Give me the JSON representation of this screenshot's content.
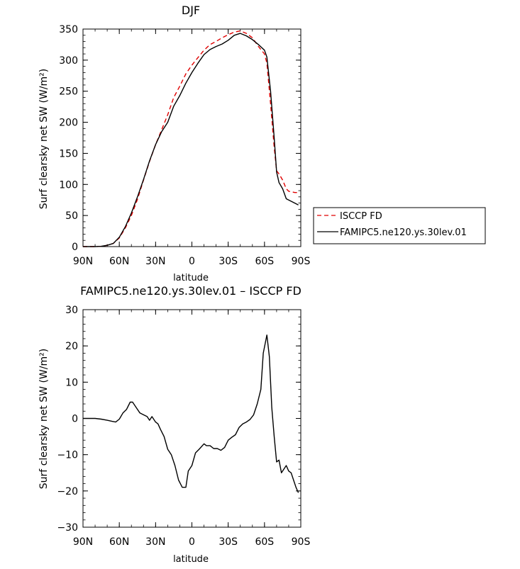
{
  "chart_data": [
    {
      "type": "line",
      "title": "DJF",
      "xlabel": "latitude",
      "ylabel": "Surf clearsky net SW (W/m²)",
      "xlim": [
        90,
        -90
      ],
      "ylim": [
        0,
        350
      ],
      "x_ticks": [
        90,
        60,
        30,
        0,
        -30,
        -60,
        -90
      ],
      "x_tick_labels": [
        "90N",
        "60N",
        "30N",
        "0",
        "30S",
        "60S",
        "90S"
      ],
      "y_ticks": [
        0,
        50,
        100,
        150,
        200,
        250,
        300,
        350
      ],
      "y_tick_labels": [
        "0",
        "50",
        "100",
        "150",
        "200",
        "250",
        "300",
        "350"
      ],
      "legend_position": "right",
      "series": [
        {
          "name": "ISCCP FD",
          "color": "#e00000",
          "dash": "dashed",
          "x": [
            90,
            85,
            80,
            75,
            70,
            65,
            60,
            55,
            50,
            45,
            40,
            35,
            30,
            25,
            20,
            15,
            10,
            5,
            0,
            -5,
            -10,
            -15,
            -20,
            -25,
            -30,
            -35,
            -40,
            -45,
            -50,
            -55,
            -60,
            -62,
            -65,
            -68,
            -70,
            -72,
            -75,
            -78,
            -80,
            -85,
            -88
          ],
          "y": [
            0,
            0,
            0,
            0.5,
            2,
            5,
            14,
            30,
            50,
            76,
            107,
            137,
            164,
            188,
            212,
            240,
            258,
            278,
            292,
            304,
            316,
            325,
            330,
            336,
            341,
            345,
            347,
            343,
            336,
            322,
            310,
            295,
            230,
            160,
            122,
            117,
            107,
            93,
            89,
            87,
            87
          ]
        },
        {
          "name": "FAMIPC5.ne120.ys.30lev.01",
          "color": "#000000",
          "dash": "solid",
          "x": [
            90,
            85,
            80,
            75,
            70,
            65,
            60,
            55,
            50,
            45,
            40,
            35,
            30,
            25,
            20,
            15,
            10,
            5,
            0,
            -5,
            -10,
            -15,
            -20,
            -25,
            -30,
            -35,
            -40,
            -45,
            -50,
            -55,
            -60,
            -62,
            -65,
            -68,
            -70,
            -72,
            -75,
            -78,
            -80,
            -85,
            -88
          ],
          "y": [
            0,
            0,
            0,
            0.5,
            2,
            5,
            15,
            32,
            54,
            80,
            108,
            138,
            164,
            185,
            200,
            226,
            243,
            263,
            280,
            295,
            309,
            317,
            322,
            326,
            332,
            340,
            343,
            339,
            333,
            325,
            316,
            305,
            250,
            175,
            120,
            103,
            93,
            77,
            75,
            70,
            67
          ]
        }
      ]
    },
    {
      "type": "line",
      "title": "FAMIPC5.ne120.ys.30lev.01 – ISCCP FD",
      "xlabel": "latitude",
      "ylabel": "Surf clearsky net SW (W/m²)",
      "xlim": [
        90,
        -90
      ],
      "ylim": [
        -30,
        30
      ],
      "x_ticks": [
        90,
        60,
        30,
        0,
        -30,
        -60,
        -90
      ],
      "x_tick_labels": [
        "90N",
        "60N",
        "30N",
        "0",
        "30S",
        "60S",
        "90S"
      ],
      "y_ticks": [
        -30,
        -20,
        -10,
        0,
        10,
        20,
        30
      ],
      "y_tick_labels": [
        "−30",
        "−20",
        "−10",
        "0",
        "10",
        "20",
        "30"
      ],
      "series": [
        {
          "color": "#000000",
          "dash": "solid",
          "x": [
            90,
            85,
            80,
            75,
            70,
            66,
            63,
            60,
            57,
            54,
            51,
            49,
            46,
            43,
            40,
            37,
            35,
            33,
            30,
            28,
            26,
            23,
            20,
            17,
            14,
            11,
            8,
            5,
            3,
            0,
            -3,
            -6,
            -10,
            -12,
            -15,
            -18,
            -21,
            -24,
            -27,
            -30,
            -33,
            -36,
            -39,
            -42,
            -45,
            -48,
            -51,
            -54,
            -57,
            -59,
            -62,
            -64,
            -66,
            -68,
            -70,
            -72,
            -74,
            -76,
            -78,
            -80,
            -82,
            -84,
            -86,
            -88
          ],
          "y": [
            0,
            0,
            0,
            -0.2,
            -0.5,
            -0.8,
            -1,
            -0.2,
            1.5,
            2.5,
            4.5,
            4.5,
            3,
            1.5,
            1,
            0.5,
            -0.5,
            0.5,
            -1,
            -1.5,
            -3,
            -5,
            -8.5,
            -10,
            -13,
            -17,
            -19,
            -19,
            -14.5,
            -13,
            -9.5,
            -8.5,
            -7,
            -7.5,
            -7.5,
            -8.3,
            -8.3,
            -8.8,
            -8,
            -6,
            -5.2,
            -4.5,
            -2.5,
            -1.5,
            -1,
            -0.3,
            1,
            4,
            8,
            18,
            23,
            17,
            3,
            -5,
            -12,
            -11.5,
            -15,
            -14,
            -13,
            -14.5,
            -15,
            -17,
            -19,
            -20.5
          ]
        }
      ]
    }
  ]
}
